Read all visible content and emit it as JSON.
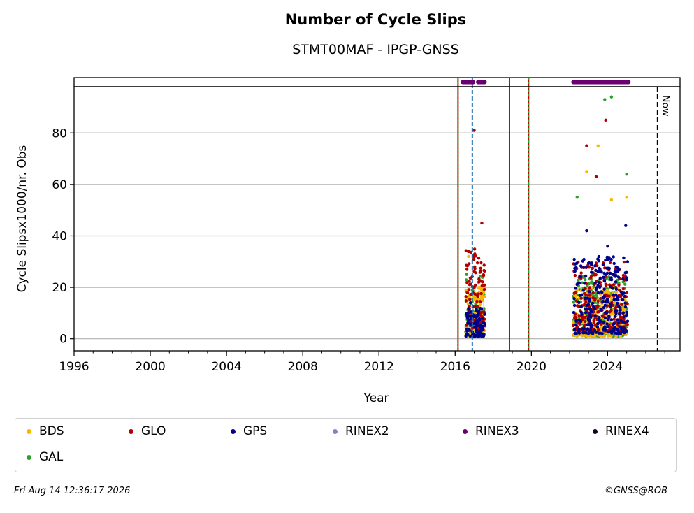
{
  "chart_data": {
    "type": "scatter",
    "title": "Number of Cycle Slips",
    "subtitle": "STMT00MAF - IPGP-GNSS",
    "xlabel": "Year",
    "ylabel": "Cycle Slipsx1000/nr. Obs",
    "xlim": [
      1996,
      2027.8
    ],
    "ylim": [
      -4.7,
      98
    ],
    "x_ticks": [
      1996,
      2000,
      2004,
      2008,
      2012,
      2016,
      2020,
      2024
    ],
    "x_tick_labels": [
      "1996",
      "2000",
      "2004",
      "2008",
      "2012",
      "2016",
      "2020",
      "2024"
    ],
    "y_ticks": [
      0,
      20,
      40,
      60,
      80
    ],
    "y_tick_labels": [
      "0",
      "20",
      "40",
      "60",
      "80"
    ],
    "grid": "horizontal",
    "colors": {
      "BDS": "#f5b800",
      "GLO": "#b00000",
      "GPS": "#00008b",
      "GAL": "#2ca02c",
      "RINEX2": "#8a7fc2",
      "RINEX3": "#6a0070",
      "RINEX4": "#1a0020",
      "vline_red": "#cc0000",
      "vline_green": "#2ca02c",
      "vline_blue": "#1f6fb4"
    },
    "vertical_lines": [
      {
        "x": 2016.15,
        "style": "green-red-dotted"
      },
      {
        "x": 2016.9,
        "style": "blue-dashed"
      },
      {
        "x": 2018.85,
        "style": "red-solid"
      },
      {
        "x": 2019.85,
        "style": "green-red-dotted"
      },
      {
        "x": 2026.62,
        "style": "black-dashed",
        "label": "Now"
      }
    ],
    "rinex_bars": [
      {
        "name": "RINEX3",
        "from": 2016.4,
        "to": 2016.95
      },
      {
        "name": "RINEX3",
        "from": 2017.2,
        "to": 2017.55
      },
      {
        "name": "RINEX3",
        "from": 2022.2,
        "to": 2025.1
      }
    ],
    "periods": [
      {
        "from": 2016.55,
        "to": 2017.55
      },
      {
        "from": 2022.2,
        "to": 2025.05
      }
    ],
    "series": [
      {
        "name": "GPS",
        "typical_range": [
          1,
          12
        ],
        "peaks": [
          [
            2016.8,
            14
          ],
          [
            2022.9,
            42
          ],
          [
            2024.0,
            36
          ],
          [
            2024.95,
            44
          ]
        ]
      },
      {
        "name": "GLO",
        "typical_range": [
          3,
          30
        ],
        "peaks": [
          [
            2017.0,
            81
          ],
          [
            2017.4,
            45
          ],
          [
            2022.9,
            75
          ],
          [
            2023.4,
            63
          ],
          [
            2023.9,
            85
          ]
        ]
      },
      {
        "name": "BDS",
        "typical_range": [
          1,
          20
        ],
        "peaks": [
          [
            2016.7,
            32
          ],
          [
            2022.9,
            65
          ],
          [
            2023.5,
            75
          ],
          [
            2024.2,
            54
          ],
          [
            2025.0,
            55
          ]
        ]
      },
      {
        "name": "GAL",
        "typical_range": [
          1,
          25
        ],
        "peaks": [
          [
            2016.6,
            25
          ],
          [
            2022.4,
            55
          ],
          [
            2023.85,
            93
          ],
          [
            2024.2,
            94
          ],
          [
            2025.0,
            64
          ]
        ]
      }
    ]
  },
  "legend": {
    "items": [
      "BDS",
      "GLO",
      "GPS",
      "RINEX2",
      "RINEX3",
      "RINEX4",
      "GAL"
    ]
  },
  "footer": {
    "timestamp": "Fri Aug 14 12:36:17 2026",
    "credit": "©GNSS@ROB"
  }
}
